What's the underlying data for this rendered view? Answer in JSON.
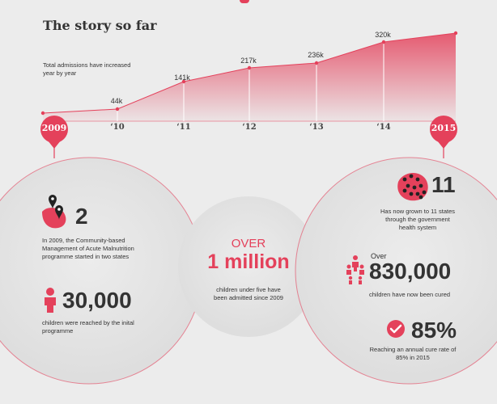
{
  "title": "The story so far",
  "intro": "Total admissions have increased year by year",
  "colors": {
    "accent": "#e4415b",
    "bg": "#ececec",
    "circle": "#e2e2e2"
  },
  "chart_data": {
    "type": "area",
    "x": [
      "2009",
      "'10",
      "'11",
      "'12",
      "'13",
      "'14",
      "2015"
    ],
    "values": [
      null,
      44,
      141,
      217,
      236,
      320,
      null
    ],
    "value_labels": [
      "",
      "44k",
      "141k",
      "217k",
      "236k",
      "320k",
      ""
    ],
    "xlabels": [
      "",
      "‘10",
      "‘11",
      "‘12",
      "‘13",
      "‘14",
      ""
    ]
  },
  "start_badge": "2009",
  "end_badge": "2015",
  "left": {
    "states_count": "2",
    "states_text": "In 2009, the Community-based Management of Acute Malnutrition programme started in two states",
    "children_count": "30,000",
    "children_text": "children were reached by the inital programme"
  },
  "center": {
    "over": "OVER",
    "million": "1 million",
    "text": "children under five have been admitted since 2009"
  },
  "right": {
    "states_count": "11",
    "states_text": "Has now grown to 11 states through the government health system",
    "cured_over": "Over",
    "cured_count": "830,000",
    "cured_text": "children have now been cured",
    "rate": "85%",
    "rate_text": "Reaching an annual cure rate of 85% in 2015"
  }
}
